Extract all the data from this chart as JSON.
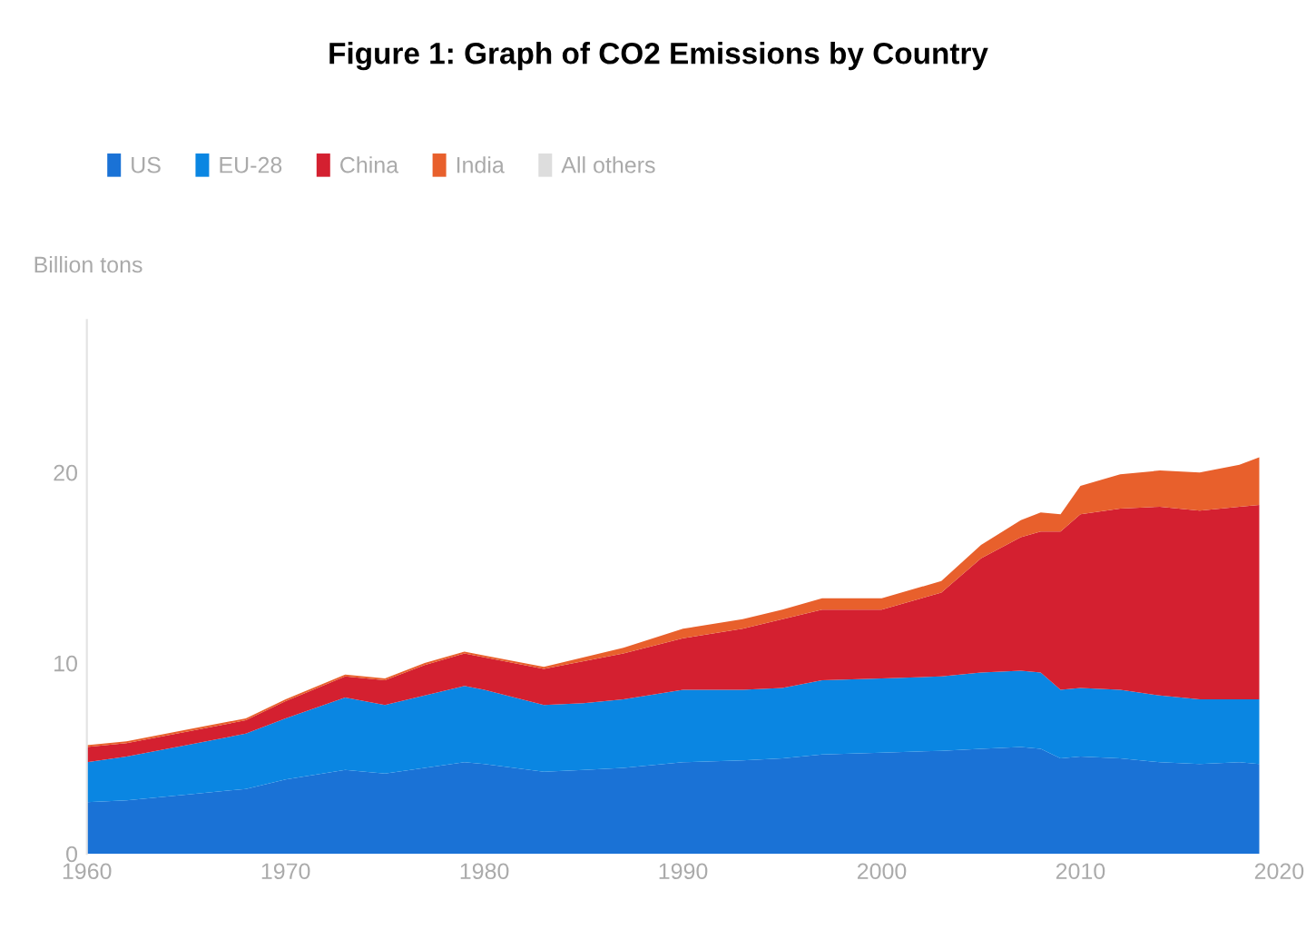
{
  "chart_data": {
    "type": "area",
    "stacked": true,
    "title": "Figure 1: Graph of CO2 Emissions by Country",
    "ylabel": "Billion tons",
    "x": [
      1960,
      1962,
      1965,
      1968,
      1970,
      1973,
      1975,
      1977,
      1979,
      1980,
      1983,
      1985,
      1987,
      1990,
      1993,
      1995,
      1997,
      2000,
      2003,
      2005,
      2007,
      2008,
      2009,
      2010,
      2012,
      2014,
      2016,
      2018,
      2019
    ],
    "series": [
      {
        "name": "US",
        "color": "#1a72d6",
        "values": [
          2.7,
          2.8,
          3.1,
          3.4,
          3.9,
          4.4,
          4.2,
          4.5,
          4.8,
          4.7,
          4.3,
          4.4,
          4.5,
          4.8,
          4.9,
          5.0,
          5.2,
          5.3,
          5.4,
          5.5,
          5.6,
          5.5,
          5.0,
          5.1,
          5.0,
          4.8,
          4.7,
          4.8,
          4.7
        ]
      },
      {
        "name": "EU-28",
        "color": "#0a86e2",
        "values": [
          2.1,
          2.3,
          2.6,
          2.9,
          3.2,
          3.8,
          3.6,
          3.8,
          4.0,
          3.9,
          3.5,
          3.5,
          3.6,
          3.8,
          3.7,
          3.7,
          3.9,
          3.9,
          3.9,
          4.0,
          4.0,
          4.0,
          3.6,
          3.6,
          3.6,
          3.5,
          3.4,
          3.3,
          3.4
        ]
      },
      {
        "name": "China",
        "color": "#d42030",
        "values": [
          0.8,
          0.7,
          0.7,
          0.7,
          0.9,
          1.1,
          1.3,
          1.6,
          1.7,
          1.7,
          1.9,
          2.2,
          2.4,
          2.7,
          3.2,
          3.6,
          3.7,
          3.6,
          4.4,
          6.0,
          7.0,
          7.4,
          8.3,
          9.1,
          9.5,
          9.9,
          9.9,
          10.1,
          10.2
        ]
      },
      {
        "name": "India",
        "color": "#e8602c",
        "values": [
          0.1,
          0.1,
          0.1,
          0.1,
          0.1,
          0.1,
          0.1,
          0.1,
          0.1,
          0.1,
          0.1,
          0.2,
          0.3,
          0.5,
          0.5,
          0.5,
          0.6,
          0.6,
          0.6,
          0.7,
          0.9,
          1.0,
          0.9,
          1.5,
          1.8,
          1.9,
          2.0,
          2.2,
          2.5
        ]
      },
      {
        "name": "All others",
        "color": "#dddddd",
        "values": [
          null,
          null,
          null,
          null,
          null,
          null,
          null,
          null,
          null,
          null,
          null,
          null,
          null,
          null,
          null,
          null,
          null,
          null,
          null,
          null,
          null,
          null,
          null,
          null,
          null,
          null,
          null,
          null,
          null
        ]
      }
    ],
    "xlim": [
      1960,
      2020
    ],
    "xticks": [
      1960,
      1970,
      1980,
      1990,
      2000,
      2010,
      2020
    ],
    "ylim": [
      0,
      28
    ],
    "yticks": [
      0,
      10,
      20
    ],
    "grid": false,
    "legend": "top left"
  }
}
